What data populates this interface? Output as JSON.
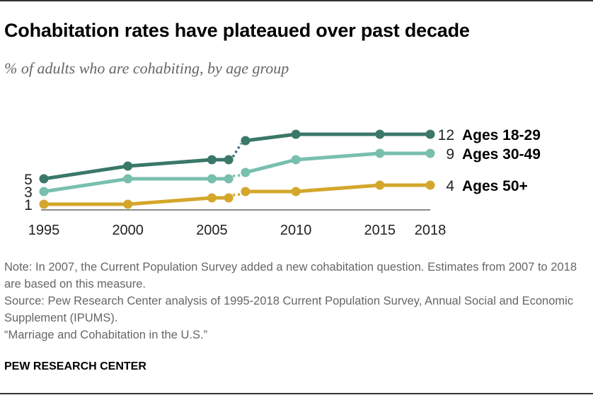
{
  "title": "Cohabitation rates have plateaued over past decade",
  "subtitle": "% of adults who are cohabiting, by age group",
  "notes": [
    "Note: In 2007, the Current Population Survey added a new cohabitation question. Estimates from 2007 to 2018 are based on this measure.",
    "Source: Pew Research Center analysis of 1995-2018 Current Population Survey, Annual Social and Economic Supplement (IPUMS).",
    "“Marriage and Cohabitation in the U.S.”"
  ],
  "brand": "PEW RESEARCH CENTER",
  "chart_data": {
    "type": "line",
    "x": [
      1995,
      2000,
      2005,
      2006,
      2007,
      2010,
      2015,
      2018
    ],
    "xticks": [
      "1995",
      "2000",
      "2005",
      "2010",
      "2015",
      "2018"
    ],
    "xlim": [
      1995,
      2018
    ],
    "ylim": [
      0,
      12
    ],
    "grid": false,
    "break_note": "dotted segment between 2006 and 2007",
    "series": [
      {
        "name": "Ages 18-29",
        "values": [
          5,
          7,
          8,
          8,
          11,
          12,
          12,
          12
        ],
        "color": "#3a7868",
        "start_label": "5",
        "end_label": "12"
      },
      {
        "name": "Ages 30-49",
        "values": [
          3,
          5,
          5,
          5,
          6,
          8,
          9,
          9
        ],
        "color": "#78bfae",
        "start_label": "3",
        "end_label": "9"
      },
      {
        "name": "Ages 50+",
        "values": [
          1,
          1,
          2,
          2,
          3,
          3,
          4,
          4
        ],
        "color": "#d4a72c",
        "start_label": "1",
        "end_label": "4"
      }
    ],
    "dotted_color": "#3d6a8a",
    "axis_color": "#8a8a8a"
  }
}
